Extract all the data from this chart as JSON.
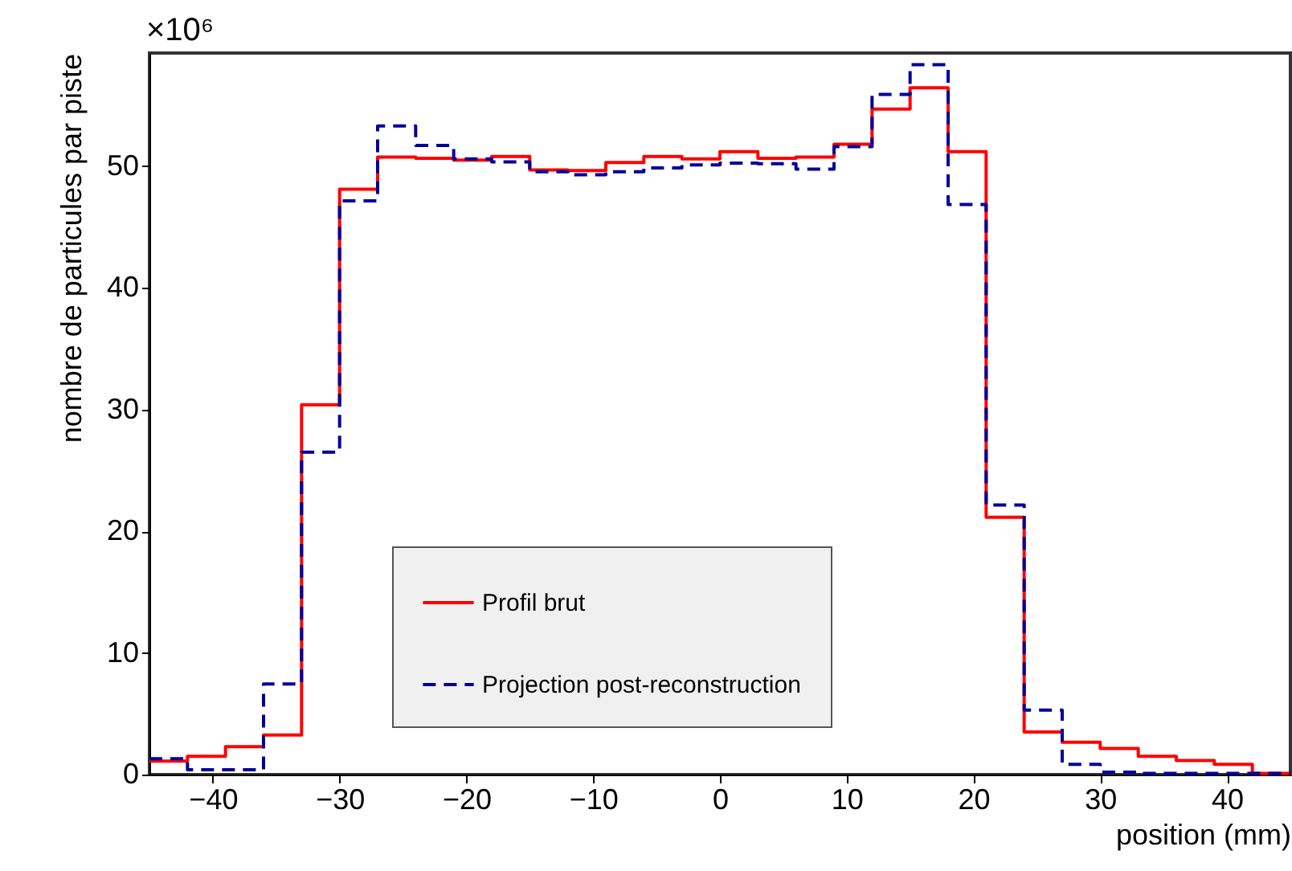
{
  "chart_data": {
    "type": "histogram",
    "xlabel": "position (mm)",
    "ylabel": "nombre de particules par piste",
    "annotations": [
      "×10⁶"
    ],
    "bins": [
      -45,
      -42,
      -39,
      -36,
      -33,
      -30,
      -27,
      -24,
      -21,
      -18,
      -15,
      -12,
      -9,
      -6,
      -3,
      0,
      3,
      6,
      9,
      12,
      15,
      18,
      21,
      24,
      27,
      30,
      33,
      36,
      39,
      42,
      45
    ],
    "series": [
      {
        "name": "Profil brut",
        "color": "#ff0000",
        "line_style": "solid",
        "values": [
          1.1,
          1.5,
          2.3,
          3.25,
          30.4,
          48.1,
          50.75,
          50.65,
          50.5,
          50.8,
          49.7,
          49.65,
          50.3,
          50.8,
          50.6,
          51.2,
          50.65,
          50.75,
          51.8,
          54.7,
          56.45,
          51.2,
          21.15,
          3.5,
          2.65,
          2.15,
          1.5,
          1.15,
          0.85,
          0.1
        ]
      },
      {
        "name": "Projection post-reconstruction",
        "color": "#000099",
        "line_style": "dashed",
        "values": [
          1.3,
          0.4,
          0.4,
          7.45,
          26.5,
          47.15,
          53.3,
          51.7,
          50.6,
          50.35,
          49.55,
          49.3,
          49.55,
          49.85,
          50.1,
          50.25,
          50.2,
          49.75,
          51.6,
          55.9,
          58.35,
          46.85,
          22.15,
          5.3,
          0.85,
          0.2,
          0.1,
          0.1,
          0.1,
          0.1
        ]
      }
    ],
    "xlim": [
      -45,
      45
    ],
    "xticks": [
      -40,
      -30,
      -20,
      -10,
      0,
      10,
      20,
      30,
      40
    ],
    "ylim": [
      0,
      59.3
    ],
    "yticks": [
      0,
      10,
      20,
      30,
      40,
      50
    ],
    "grid": false,
    "legend": "bottom"
  }
}
